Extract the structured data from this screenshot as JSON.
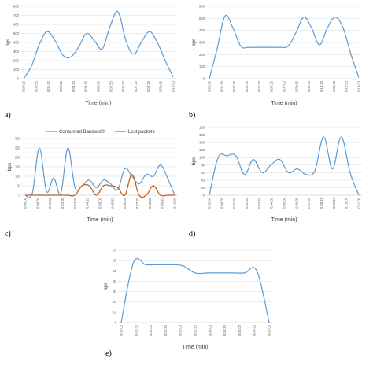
{
  "colors": {
    "bandwidth": "#5b9bd5",
    "lost": "#c55a11",
    "grid": "#d9d9d9",
    "axis": "#bfbfbf"
  },
  "chart_data": [
    {
      "type": "line",
      "panel_label": "a)",
      "xlabel": "Time (min)",
      "ylabel": "bps",
      "ylim": [
        0,
        800
      ],
      "yticks": [
        0,
        100,
        200,
        300,
        400,
        500,
        600,
        700,
        800
      ],
      "grid": true,
      "x_tick_labels": [
        "0:00:00",
        "0:00:50",
        "0:01:40",
        "0:02:30",
        "0:03:20",
        "0:04:10",
        "0:05:00",
        "0:05:50",
        "0:06:40",
        "0:07:30",
        "0:08:20",
        "0:09:10",
        "0:10:00"
      ],
      "series": [
        {
          "color": "#5b9bd5",
          "points": [
            [
              0,
              0
            ],
            [
              1,
              140
            ],
            [
              2,
              380
            ],
            [
              3,
              520
            ],
            [
              4,
              420
            ],
            [
              5,
              260
            ],
            [
              6,
              240
            ],
            [
              7,
              350
            ],
            [
              8,
              500
            ],
            [
              9,
              420
            ],
            [
              10,
              330
            ],
            [
              11,
              580
            ],
            [
              12,
              740
            ],
            [
              13,
              420
            ],
            [
              14,
              270
            ],
            [
              15,
              410
            ],
            [
              16,
              520
            ],
            [
              17,
              400
            ],
            [
              18,
              200
            ],
            [
              19,
              20
            ]
          ]
        }
      ]
    },
    {
      "type": "line",
      "panel_label": "b)",
      "xlabel": "Time (min)",
      "ylabel": "bps",
      "ylim": [
        0,
        600
      ],
      "yticks": [
        0,
        100,
        200,
        300,
        400,
        500,
        600
      ],
      "grid": true,
      "x_tick_labels": [
        "0:00:00",
        "0:01:10",
        "0:02:20",
        "0:03:30",
        "0:04:40",
        "0:05:50",
        "0:07:00",
        "0:08:10",
        "0:09:20",
        "0:10:30",
        "0:11:40",
        "0:12:50",
        "0:14:00"
      ],
      "series": [
        {
          "color": "#5b9bd5",
          "points": [
            [
              0,
              0
            ],
            [
              1,
              250
            ],
            [
              2,
              520
            ],
            [
              3,
              420
            ],
            [
              4,
              270
            ],
            [
              5,
              260
            ],
            [
              6,
              260
            ],
            [
              7,
              260
            ],
            [
              8,
              260
            ],
            [
              9,
              260
            ],
            [
              10,
              270
            ],
            [
              11,
              380
            ],
            [
              12,
              510
            ],
            [
              13,
              420
            ],
            [
              14,
              280
            ],
            [
              15,
              420
            ],
            [
              16,
              510
            ],
            [
              17,
              420
            ],
            [
              18,
              200
            ],
            [
              19,
              10
            ]
          ]
        }
      ]
    },
    {
      "type": "line",
      "panel_label": "c)",
      "xlabel": "Time (min)",
      "ylabel": "bps",
      "ylim": [
        0,
        300
      ],
      "yticks": [
        0,
        50,
        100,
        150,
        200,
        250,
        300
      ],
      "grid": true,
      "legend": {
        "placement": "top",
        "entries": [
          "Consumed Bandwidth",
          "Lost packets"
        ]
      },
      "x_tick_labels": [
        "0:00:00",
        "0:00:50",
        "0:01:40",
        "0:02:30",
        "0:03:20",
        "0:04:10",
        "0:05:00",
        "0:05:50",
        "0:06:40",
        "0:07:30",
        "0:08:20",
        "0:09:10",
        "0:10:00"
      ],
      "series": [
        {
          "name": "Consumed Bandwidth",
          "color": "#5b9bd5",
          "points": [
            [
              0,
              0
            ],
            [
              1,
              10
            ],
            [
              2,
              250
            ],
            [
              3,
              20
            ],
            [
              4,
              90
            ],
            [
              5,
              10
            ],
            [
              6,
              250
            ],
            [
              7,
              40
            ],
            [
              8,
              50
            ],
            [
              9,
              80
            ],
            [
              10,
              40
            ],
            [
              11,
              80
            ],
            [
              12,
              60
            ],
            [
              13,
              30
            ],
            [
              14,
              140
            ],
            [
              15,
              100
            ],
            [
              16,
              60
            ],
            [
              17,
              110
            ],
            [
              18,
              100
            ],
            [
              19,
              160
            ],
            [
              20,
              90
            ],
            [
              21,
              0
            ]
          ]
        },
        {
          "name": "Lost packets",
          "color": "#c55a11",
          "points": [
            [
              0,
              0
            ],
            [
              1,
              0
            ],
            [
              2,
              0
            ],
            [
              3,
              0
            ],
            [
              4,
              0
            ],
            [
              5,
              0
            ],
            [
              6,
              0
            ],
            [
              7,
              0
            ],
            [
              8,
              50
            ],
            [
              9,
              50
            ],
            [
              10,
              0
            ],
            [
              11,
              50
            ],
            [
              12,
              50
            ],
            [
              13,
              40
            ],
            [
              14,
              0
            ],
            [
              15,
              110
            ],
            [
              16,
              0
            ],
            [
              17,
              0
            ],
            [
              18,
              50
            ],
            [
              19,
              0
            ],
            [
              20,
              0
            ],
            [
              21,
              0
            ]
          ]
        }
      ]
    },
    {
      "type": "line",
      "panel_label": "d)",
      "xlabel": "Time (min)",
      "ylabel": "bps",
      "ylim": [
        0,
        180
      ],
      "yticks": [
        0,
        20,
        40,
        60,
        80,
        100,
        120,
        140,
        160,
        180
      ],
      "grid": true,
      "x_tick_labels": [
        "0:00:00",
        "0:00:55",
        "0:01:50",
        "0:02:45",
        "0:03:40",
        "0:04:35",
        "0:05:30",
        "0:06:25",
        "0:07:20",
        "0:08:15",
        "0:09:10",
        "0:10:05",
        "0:11:00"
      ],
      "series": [
        {
          "color": "#5b9bd5",
          "points": [
            [
              0,
              0
            ],
            [
              1,
              100
            ],
            [
              2,
              105
            ],
            [
              3,
              105
            ],
            [
              4,
              55
            ],
            [
              5,
              95
            ],
            [
              6,
              60
            ],
            [
              7,
              80
            ],
            [
              8,
              95
            ],
            [
              9,
              60
            ],
            [
              10,
              70
            ],
            [
              11,
              55
            ],
            [
              12,
              65
            ],
            [
              13,
              155
            ],
            [
              14,
              70
            ],
            [
              15,
              155
            ],
            [
              16,
              60
            ],
            [
              17,
              0
            ]
          ]
        }
      ]
    },
    {
      "type": "line",
      "panel_label": "e)",
      "xlabel": "Time (min)",
      "ylabel": "bps",
      "ylim": [
        0,
        70
      ],
      "yticks": [
        0,
        10,
        20,
        30,
        40,
        50,
        60,
        70
      ],
      "grid": true,
      "x_tick_labels": [
        "0:00:00",
        "0:00:30",
        "0:01:00",
        "0:01:30",
        "0:02:00",
        "0:02:30",
        "0:03:00",
        "0:03:30",
        "0:04:00",
        "0:04:30",
        "0:05:00"
      ],
      "series": [
        {
          "color": "#5b9bd5",
          "points": [
            [
              0,
              0
            ],
            [
              1,
              58
            ],
            [
              2,
              56
            ],
            [
              3,
              56
            ],
            [
              4,
              56
            ],
            [
              5,
              55
            ],
            [
              6,
              48
            ],
            [
              7,
              48
            ],
            [
              8,
              48
            ],
            [
              9,
              48
            ],
            [
              10,
              48
            ],
            [
              11,
              50
            ],
            [
              12,
              0
            ]
          ]
        }
      ]
    }
  ]
}
